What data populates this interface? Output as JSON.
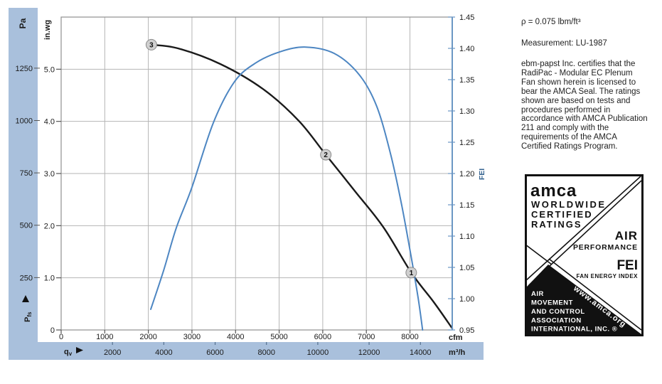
{
  "side_panel": {
    "density_line": "ρ = 0.075 lbm/ft³",
    "measurement_line": "Measurement: LU-1987",
    "certification_text": "ebm-papst Inc. certifies that the RadiPac - Modular EC Plenum Fan shown herein is licensed to bear the AMCA Seal. The ratings shown are based on tests and procedures performed in accordance with AMCA Publication 211 and comply with the requirements of the AMCA Certified Ratings Program."
  },
  "amca_seal": {
    "brand": "amca",
    "cert_lines": [
      "WORLDWIDE",
      "CERTIFIED",
      "RATINGS"
    ],
    "air": "AIR",
    "performance": "PERFORMANCE",
    "fei": "FEI",
    "fei_sub": "FAN ENERGY INDEX",
    "org_lines": [
      "AIR",
      "MOVEMENT",
      "AND CONTROL",
      "ASSOCIATION",
      "INTERNATIONAL, INC. ®"
    ],
    "website": "www.amca.org"
  },
  "chart_data": {
    "type": "line",
    "x_axis": {
      "quantity": "qv",
      "primary": {
        "unit": "cfm",
        "ticks": [
          0,
          1000,
          2000,
          3000,
          4000,
          5000,
          6000,
          7000,
          8000
        ],
        "range": [
          0,
          8970
        ]
      },
      "secondary": {
        "unit": "m³/h",
        "ticks": [
          2000,
          4000,
          6000,
          8000,
          10000,
          12000,
          14000
        ],
        "cfm_per_unit": 0.5886
      }
    },
    "y_left": {
      "quantity": "Pfs",
      "inwg": {
        "unit": "in.wg",
        "tick_values": [
          0,
          1,
          2,
          3,
          4,
          5
        ],
        "tick_labels": [
          "0",
          "1.0",
          "2.0",
          "3.0",
          "4.0",
          "5.0"
        ],
        "range": [
          0,
          6
        ]
      },
      "pa": {
        "unit": "Pa",
        "ticks": [
          250,
          500,
          750,
          1000,
          1250
        ],
        "pa_per_inwg": 249
      }
    },
    "y_right": {
      "unit": "FEI",
      "range": [
        0.95,
        1.45
      ],
      "tick_step": 0.05
    },
    "grid": true,
    "series": [
      {
        "name": "fan_curve",
        "axis": "left",
        "points": [
          [
            2070,
            5.47
          ],
          [
            2680,
            5.4
          ],
          [
            3650,
            5.1
          ],
          [
            4630,
            4.62
          ],
          [
            5450,
            4.01
          ],
          [
            6070,
            3.36
          ],
          [
            6750,
            2.65
          ],
          [
            7400,
            1.96
          ],
          [
            8030,
            1.1
          ],
          [
            8550,
            0.53
          ],
          [
            8970,
            0.03
          ]
        ]
      },
      {
        "name": "fei_curve",
        "axis": "right",
        "points": [
          [
            2055,
            0.983
          ],
          [
            2350,
            1.045
          ],
          [
            2640,
            1.113
          ],
          [
            3000,
            1.178
          ],
          [
            3490,
            1.281
          ],
          [
            3980,
            1.347
          ],
          [
            4470,
            1.377
          ],
          [
            5040,
            1.395
          ],
          [
            5610,
            1.402
          ],
          [
            6260,
            1.392
          ],
          [
            6835,
            1.358
          ],
          [
            7240,
            1.307
          ],
          [
            7570,
            1.227
          ],
          [
            7815,
            1.148
          ],
          [
            8025,
            1.068
          ],
          [
            8190,
            1.0
          ],
          [
            8290,
            0.95
          ]
        ]
      }
    ],
    "operating_points": [
      {
        "label": "3",
        "cfm": 2070,
        "inwg": 5.47
      },
      {
        "label": "2",
        "cfm": 6070,
        "inwg": 3.36
      },
      {
        "label": "1",
        "cfm": 8030,
        "inwg": 1.1
      }
    ],
    "colors": {
      "band": "#a9c0dc",
      "grid": "#b4b4b4",
      "frame": "#8f8f8f",
      "fan_curve": "#1a1a1a",
      "fei_curve": "#4d86c2",
      "fei_axis": "#6b97c4",
      "fei_label": "#33628f",
      "marker_fill": "#d0d0d0",
      "marker_stroke": "#8a8a8a",
      "tick": "#555555",
      "band_tick": "#54708e",
      "text": "#1b1b1b"
    }
  }
}
